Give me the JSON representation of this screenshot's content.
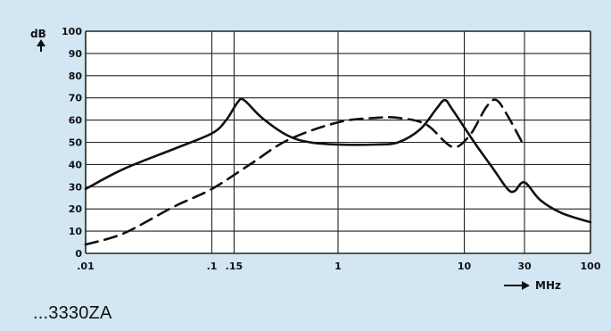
{
  "caption": "...3330ZA",
  "chart_data": {
    "type": "line",
    "xscale": "log",
    "xlim": [
      0.01,
      100
    ],
    "ylim": [
      0,
      100
    ],
    "ylabel": "dB",
    "xlabel": "MHz",
    "grid": true,
    "xticks": [
      {
        "value": 0.01,
        "label": ".01"
      },
      {
        "value": 0.1,
        "label": ".1"
      },
      {
        "value": 0.15,
        "label": ".15"
      },
      {
        "value": 1,
        "label": "1"
      },
      {
        "value": 10,
        "label": "10"
      },
      {
        "value": 30,
        "label": "30"
      },
      {
        "value": 100,
        "label": "100"
      }
    ],
    "yticks": [
      0,
      10,
      20,
      30,
      40,
      50,
      60,
      70,
      80,
      90,
      100
    ],
    "series": [
      {
        "style": "solid",
        "color": "#111111",
        "points": [
          [
            0.01,
            29
          ],
          [
            0.02,
            38
          ],
          [
            0.05,
            47
          ],
          [
            0.1,
            54
          ],
          [
            0.13,
            60
          ],
          [
            0.16,
            68
          ],
          [
            0.18,
            69
          ],
          [
            0.25,
            61
          ],
          [
            0.4,
            53
          ],
          [
            0.6,
            50
          ],
          [
            1,
            49
          ],
          [
            2,
            49
          ],
          [
            3,
            50
          ],
          [
            4.5,
            56
          ],
          [
            6,
            65
          ],
          [
            7,
            69
          ],
          [
            8,
            65
          ],
          [
            12,
            50
          ],
          [
            17,
            38
          ],
          [
            22,
            29
          ],
          [
            25,
            28
          ],
          [
            30,
            32
          ],
          [
            40,
            24
          ],
          [
            60,
            18
          ],
          [
            100,
            14
          ]
        ]
      },
      {
        "style": "dashed",
        "color": "#111111",
        "points": [
          [
            0.01,
            4
          ],
          [
            0.02,
            9
          ],
          [
            0.05,
            21
          ],
          [
            0.1,
            29
          ],
          [
            0.2,
            40
          ],
          [
            0.4,
            51
          ],
          [
            1,
            59
          ],
          [
            2,
            61
          ],
          [
            3,
            61
          ],
          [
            5,
            58
          ],
          [
            8,
            48
          ],
          [
            11,
            53
          ],
          [
            15,
            66
          ],
          [
            18,
            69
          ],
          [
            22,
            62
          ],
          [
            30,
            48
          ]
        ]
      }
    ]
  }
}
